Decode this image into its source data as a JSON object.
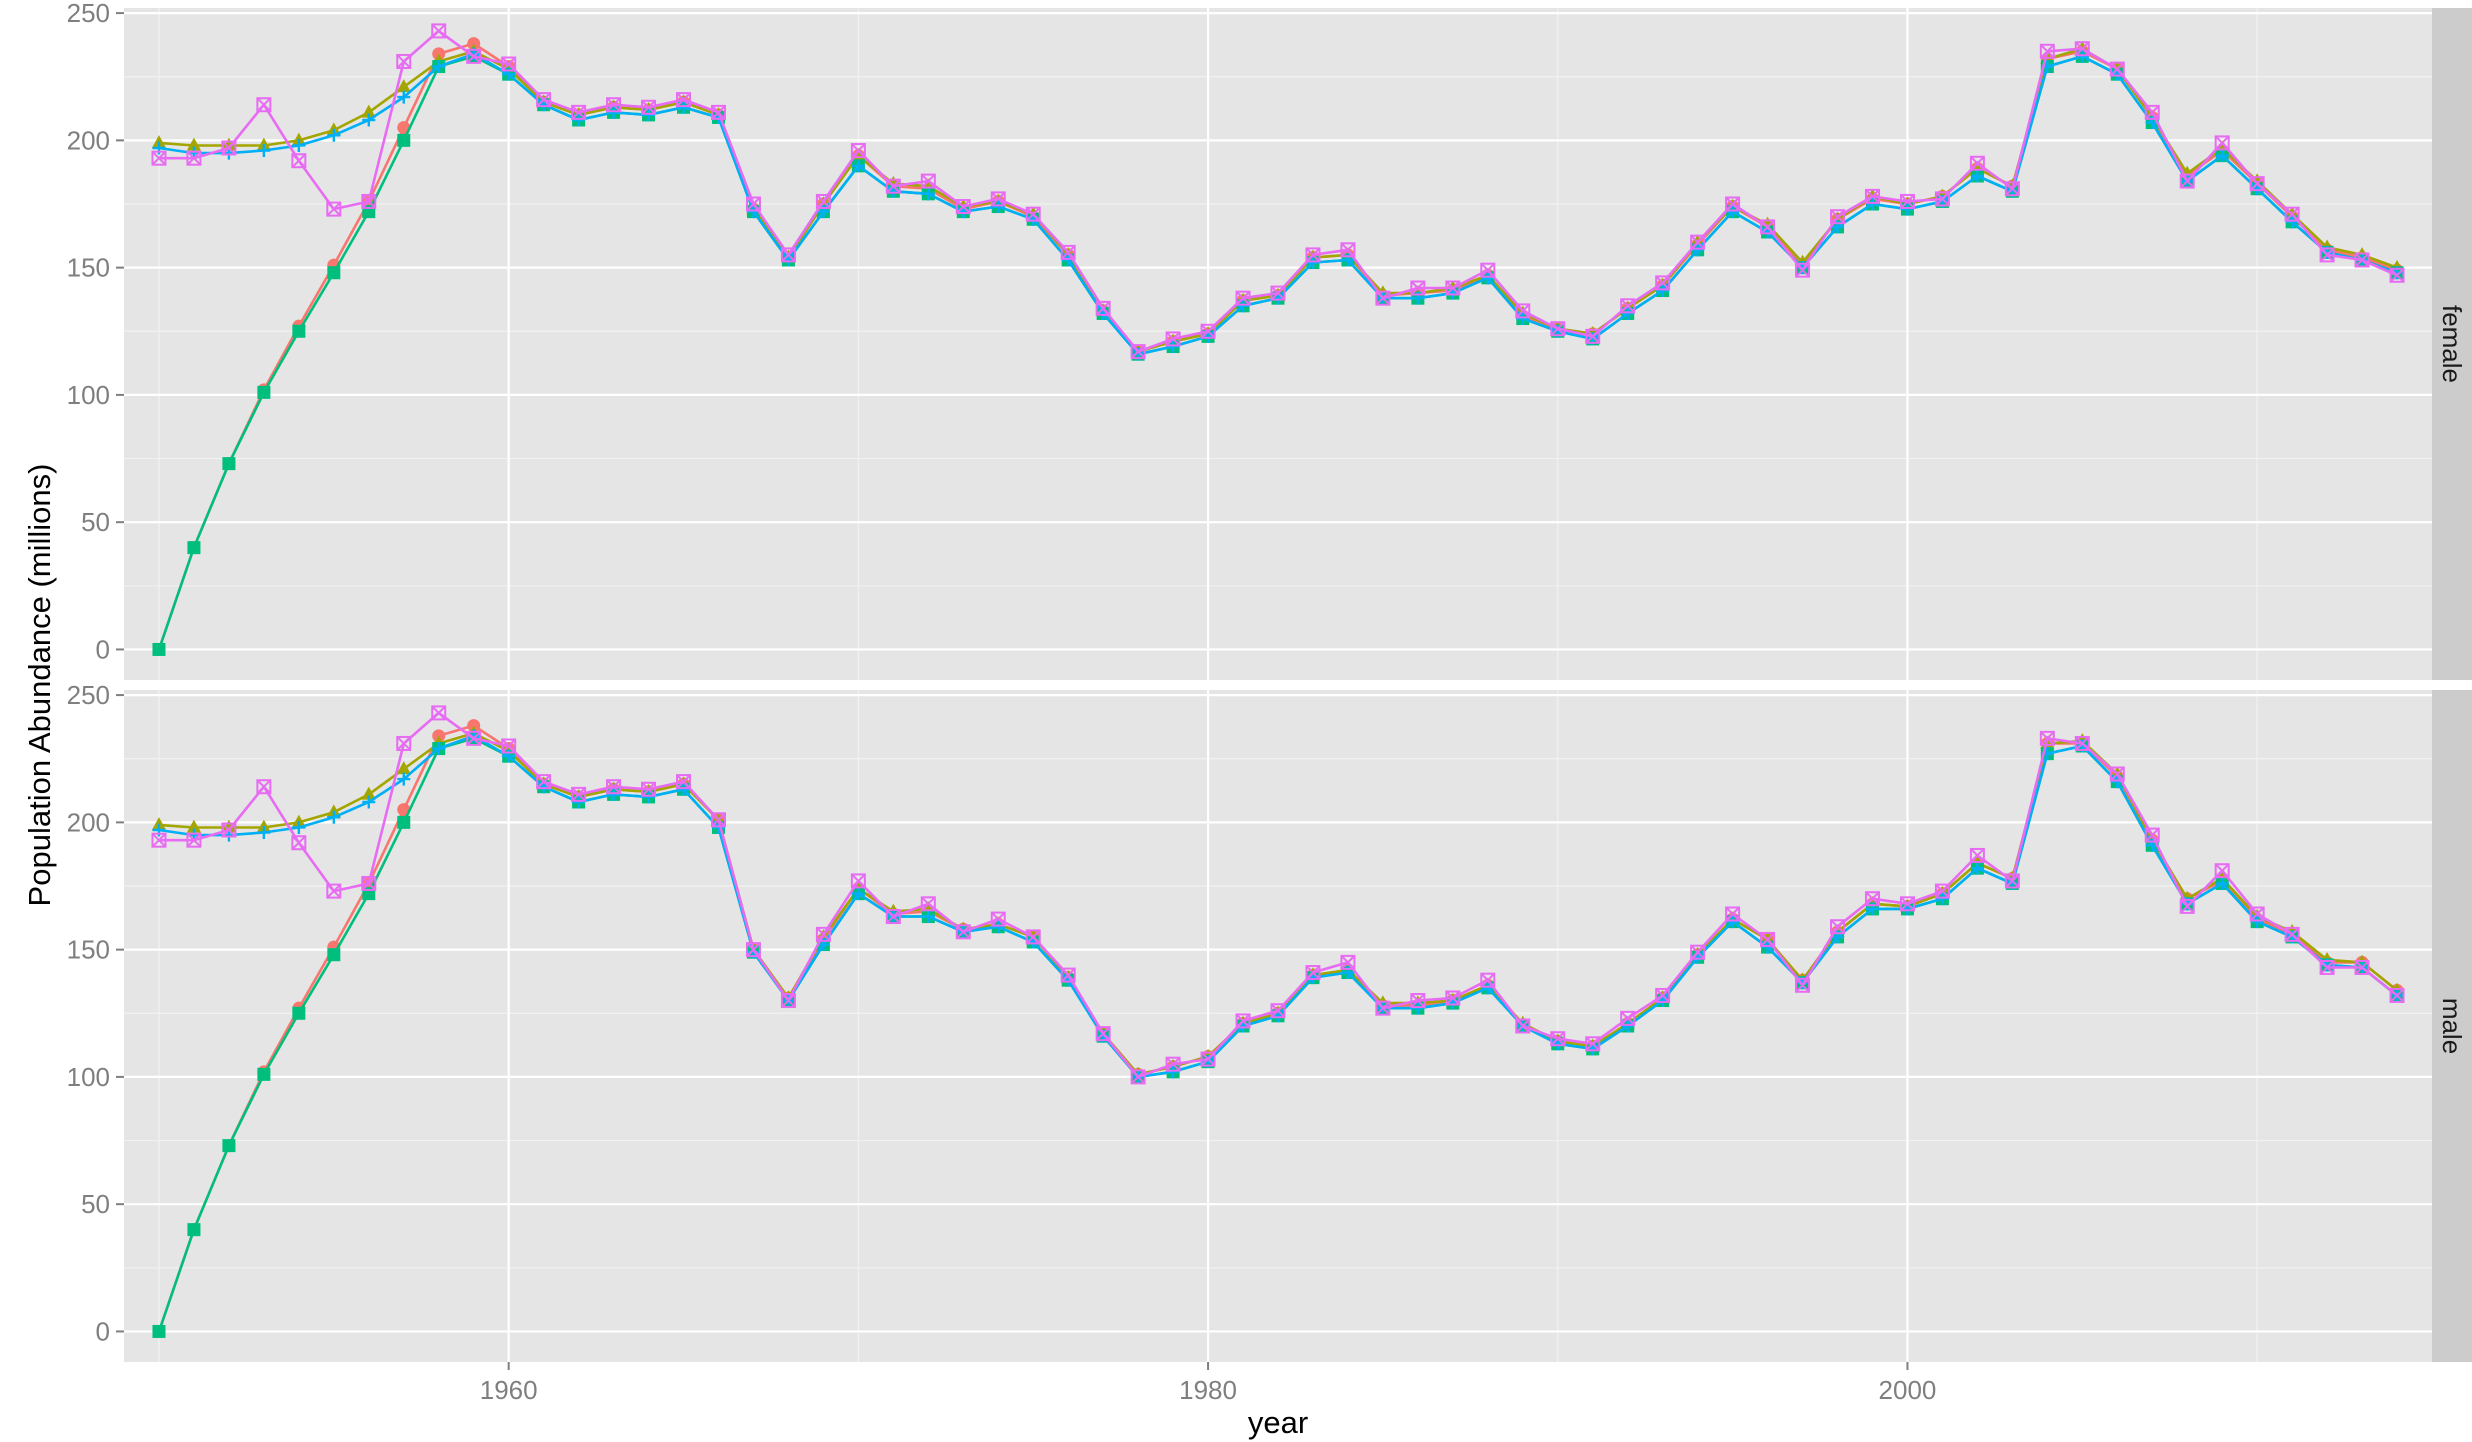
{
  "chart_data": {
    "type": "line",
    "xlabel": "year",
    "ylabel": "Population Abundance (millions)",
    "xlim": [
      1949,
      2015
    ],
    "ylim": [
      -12,
      252
    ],
    "x_ticks": [
      1960,
      1980,
      2000
    ],
    "y_ticks": [
      0,
      50,
      100,
      150,
      200,
      250
    ],
    "grid": true,
    "legend": "none",
    "colors": {
      "panel_bg": "#e5e5e5",
      "grid_major": "#ffffff",
      "grid_minor": "#f2f2f2",
      "strip_bg": "#cccccc"
    },
    "x": [
      1950,
      1951,
      1952,
      1953,
      1954,
      1955,
      1956,
      1957,
      1958,
      1959,
      1960,
      1961,
      1962,
      1963,
      1964,
      1965,
      1966,
      1967,
      1968,
      1969,
      1970,
      1971,
      1972,
      1973,
      1974,
      1975,
      1976,
      1977,
      1978,
      1979,
      1980,
      1981,
      1982,
      1983,
      1984,
      1985,
      1986,
      1987,
      1988,
      1989,
      1990,
      1991,
      1992,
      1993,
      1994,
      1995,
      1996,
      1997,
      1998,
      1999,
      2000,
      2001,
      2002,
      2003,
      2004,
      2005,
      2006,
      2007,
      2008,
      2009,
      2010,
      2011,
      2012,
      2013,
      2014
    ],
    "panels": [
      {
        "label": "female",
        "series": [
          {
            "color": "#F8766D",
            "marker": "circle",
            "values": [
              0,
              40,
              73,
              102,
              127,
              151,
              176,
              205,
              234,
              238,
              229,
              215,
              210,
              213,
              212,
              215,
              210,
              173,
              154,
              175,
              194,
              182,
              181,
              173,
              176,
              170,
              155,
              133,
              117,
              121,
              124,
              137,
              139,
              154,
              155,
              139,
              140,
              141,
              147,
              131,
              126,
              124,
              134,
              143,
              159,
              174,
              166,
              151,
              169,
              177,
              175,
              178,
              189,
              182,
              232,
              235,
              228,
              209,
              186,
              196,
              183,
              170,
              157,
              154,
              149
            ]
          },
          {
            "color": "#A3A500",
            "marker": "triangle",
            "values": [
              199,
              198,
              198,
              198,
              200,
              204,
              211,
              221,
              231,
              235,
              228,
              215,
              210,
              213,
              212,
              215,
              210,
              173,
              154,
              175,
              194,
              183,
              182,
              174,
              176,
              171,
              155,
              133,
              117,
              121,
              124,
              137,
              139,
              154,
              155,
              140,
              140,
              142,
              147,
              132,
              126,
              124,
              134,
              143,
              160,
              174,
              167,
              152,
              169,
              178,
              175,
              178,
              189,
              182,
              232,
              236,
              228,
              209,
              187,
              197,
              184,
              171,
              158,
              155,
              150
            ]
          },
          {
            "color": "#00BF7D",
            "marker": "square",
            "values": [
              0,
              40,
              73,
              101,
              125,
              148,
              172,
              200,
              229,
              233,
              226,
              214,
              208,
              211,
              210,
              213,
              209,
              172,
              153,
              172,
              190,
              180,
              179,
              172,
              174,
              169,
              153,
              132,
              116,
              119,
              123,
              135,
              138,
              152,
              153,
              138,
              138,
              140,
              146,
              130,
              125,
              122,
              132,
              141,
              157,
              172,
              164,
              150,
              166,
              175,
              173,
              176,
              186,
              180,
              229,
              233,
              226,
              207,
              184,
              194,
              181,
              168,
              156,
              153,
              148
            ]
          },
          {
            "color": "#00B0F6",
            "marker": "plus",
            "values": [
              197,
              195,
              195,
              196,
              198,
              202,
              208,
              217,
              229,
              234,
              226,
              214,
              208,
              211,
              210,
              213,
              209,
              172,
              153,
              172,
              190,
              180,
              179,
              172,
              174,
              169,
              153,
              132,
              116,
              119,
              123,
              135,
              138,
              152,
              153,
              138,
              138,
              140,
              146,
              130,
              125,
              122,
              132,
              141,
              157,
              172,
              164,
              150,
              166,
              175,
              173,
              176,
              186,
              180,
              229,
              233,
              226,
              207,
              184,
              194,
              181,
              168,
              156,
              153,
              148
            ]
          },
          {
            "color": "#E76BF3",
            "marker": "boxed-x",
            "values": [
              193,
              193,
              197,
              214,
              192,
              173,
              176,
              231,
              243,
              233,
              230,
              216,
              211,
              214,
              213,
              216,
              211,
              175,
              155,
              176,
              196,
              182,
              184,
              174,
              177,
              171,
              156,
              134,
              117,
              122,
              125,
              138,
              140,
              155,
              157,
              138,
              142,
              142,
              149,
              133,
              126,
              123,
              135,
              144,
              160,
              175,
              166,
              149,
              170,
              178,
              176,
              177,
              191,
              181,
              235,
              236,
              228,
              211,
              184,
              199,
              183,
              171,
              155,
              153,
              147
            ]
          }
        ]
      },
      {
        "label": "male",
        "series": [
          {
            "color": "#F8766D",
            "marker": "circle",
            "values": [
              0,
              40,
              73,
              102,
              127,
              151,
              176,
              205,
              234,
              238,
              229,
              215,
              210,
              213,
              212,
              215,
              201,
              150,
              131,
              154,
              174,
              164,
              165,
              158,
              160,
              155,
              139,
              117,
              101,
              104,
              108,
              121,
              125,
              140,
              142,
              128,
              128,
              130,
              136,
              120,
              114,
              112,
              121,
              131,
              148,
              162,
              154,
              138,
              157,
              168,
              167,
              172,
              184,
              178,
              231,
              231,
              218,
              193,
              170,
              177,
              162,
              156,
              145,
              145,
              134
            ]
          },
          {
            "color": "#A3A500",
            "marker": "triangle",
            "values": [
              199,
              198,
              198,
              198,
              200,
              204,
              211,
              221,
              231,
              235,
              228,
              215,
              210,
              213,
              212,
              215,
              201,
              150,
              131,
              155,
              174,
              165,
              166,
              158,
              160,
              155,
              139,
              117,
              101,
              104,
              108,
              121,
              125,
              140,
              142,
              129,
              129,
              130,
              136,
              121,
              114,
              112,
              121,
              131,
              148,
              162,
              154,
              138,
              157,
              168,
              167,
              172,
              184,
              178,
              231,
              232,
              219,
              193,
              170,
              178,
              163,
              157,
              146,
              145,
              134
            ]
          },
          {
            "color": "#00BF7D",
            "marker": "square",
            "values": [
              0,
              40,
              73,
              101,
              125,
              148,
              172,
              200,
              229,
              233,
              226,
              214,
              208,
              211,
              210,
              213,
              198,
              149,
              130,
              152,
              172,
              163,
              163,
              157,
              159,
              153,
              138,
              116,
              100,
              102,
              106,
              120,
              124,
              139,
              141,
              127,
              127,
              129,
              135,
              120,
              113,
              111,
              120,
              130,
              147,
              161,
              151,
              137,
              155,
              166,
              166,
              170,
              182,
              176,
              227,
              230,
              216,
              191,
              168,
              176,
              161,
              155,
              144,
              143,
              132
            ]
          },
          {
            "color": "#00B0F6",
            "marker": "plus",
            "values": [
              197,
              195,
              195,
              196,
              198,
              202,
              208,
              217,
              229,
              234,
              226,
              214,
              208,
              211,
              210,
              213,
              198,
              149,
              130,
              152,
              172,
              163,
              163,
              157,
              159,
              153,
              138,
              116,
              100,
              102,
              106,
              120,
              124,
              139,
              141,
              127,
              127,
              129,
              135,
              120,
              113,
              111,
              120,
              130,
              147,
              161,
              151,
              137,
              155,
              166,
              166,
              170,
              182,
              176,
              227,
              230,
              216,
              191,
              168,
              176,
              161,
              155,
              144,
              143,
              132
            ]
          },
          {
            "color": "#E76BF3",
            "marker": "boxed-x",
            "values": [
              193,
              193,
              197,
              214,
              192,
              173,
              176,
              231,
              243,
              233,
              230,
              216,
              211,
              214,
              213,
              216,
              201,
              150,
              130,
              156,
              177,
              163,
              168,
              157,
              162,
              155,
              140,
              117,
              100,
              105,
              107,
              122,
              126,
              141,
              145,
              127,
              130,
              131,
              138,
              120,
              115,
              113,
              123,
              132,
              149,
              164,
              154,
              136,
              159,
              170,
              168,
              173,
              187,
              177,
              233,
              231,
              219,
              195,
              167,
              181,
              164,
              156,
              143,
              143,
              132
            ]
          }
        ]
      }
    ]
  }
}
